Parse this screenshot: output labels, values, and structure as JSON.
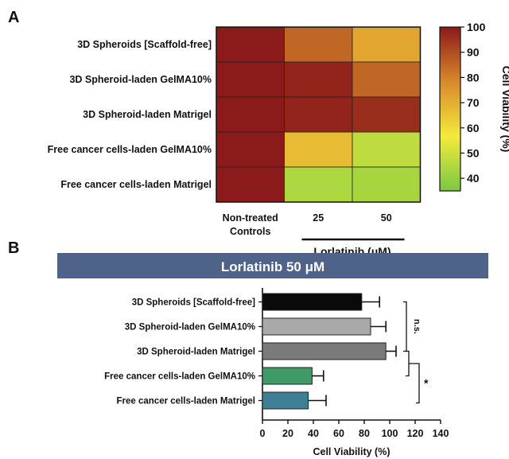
{
  "panels": {
    "a_letter": "A",
    "b_letter": "B"
  },
  "chart_data": [
    {
      "type": "heatmap",
      "rows": [
        "3D Spheroids  [Scaffold-free]",
        "3D Spheroid-laden GelMA10%",
        "3D Spheroid-laden Matrigel",
        "Free cancer cells-laden GelMA10%",
        "Free cancer cells-laden Matrigel"
      ],
      "columns": [
        "Non-treated\nControls",
        "25",
        "50"
      ],
      "column_group_label": "Lorlatinib (μM)",
      "values": [
        [
          100,
          85,
          72
        ],
        [
          100,
          98,
          85
        ],
        [
          100,
          98,
          96
        ],
        [
          100,
          67,
          47
        ],
        [
          100,
          44,
          43
        ]
      ],
      "colorbar": {
        "label": "Cell Viability (%)",
        "ticks": [
          "100",
          "90",
          "80",
          "70",
          "60",
          "50",
          "40"
        ],
        "range": [
          35,
          100
        ],
        "colors": [
          "#7ac943",
          "#f4ea3c",
          "#d9892b",
          "#8b1a1a"
        ]
      }
    },
    {
      "type": "bar",
      "orientation": "horizontal",
      "banner": "Lorlatinib 50 μM",
      "banner_color": "#4f6288",
      "categories": [
        "3D Spheroids [Scaffold-free]",
        "3D Spheroid-laden GelMA10%",
        "3D Spheroid-laden Matrigel",
        "Free cancer cells-laden GelMA10%",
        "Free cancer cells-laden Matrigel"
      ],
      "values": [
        78,
        85,
        97,
        39,
        36
      ],
      "errors": [
        14,
        12,
        8,
        9,
        14
      ],
      "colors": [
        "#0a0a0a",
        "#a9a9a9",
        "#7a7a7a",
        "#3e9a66",
        "#3f7f96"
      ],
      "xlabel": "Cell Viability (%)",
      "xlim": [
        0,
        140
      ],
      "xticks": [
        "0",
        "20",
        "40",
        "60",
        "80",
        "100",
        "120",
        "140"
      ],
      "annotations": [
        "n.s.",
        "*"
      ]
    }
  ]
}
